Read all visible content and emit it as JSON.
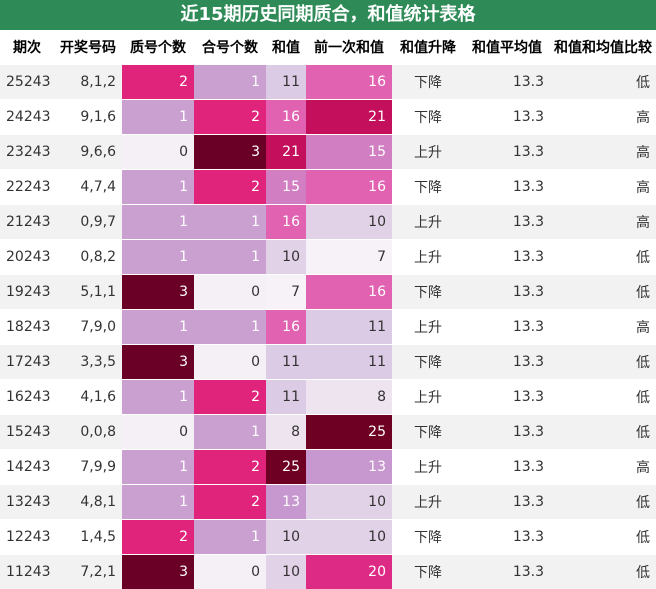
{
  "title": "近15期历史同期质合，和值统计表格",
  "headers": [
    "期次",
    "开奖号码",
    "质号个数",
    "合号个数",
    "和值",
    "前一次和值",
    "和值升降",
    "和值平均值",
    "和值和均值比较"
  ],
  "rows": [
    {
      "qici": "25243",
      "haoma": "8,1,2",
      "zhi": 2,
      "he": 1,
      "hezhi": 11,
      "qian": 16,
      "shengjiang": "下降",
      "avg": "13.3",
      "bijiao": "低"
    },
    {
      "qici": "24243",
      "haoma": "9,1,6",
      "zhi": 1,
      "he": 2,
      "hezhi": 16,
      "qian": 21,
      "shengjiang": "下降",
      "avg": "13.3",
      "bijiao": "高"
    },
    {
      "qici": "23243",
      "haoma": "9,6,6",
      "zhi": 0,
      "he": 3,
      "hezhi": 21,
      "qian": 15,
      "shengjiang": "上升",
      "avg": "13.3",
      "bijiao": "高"
    },
    {
      "qici": "22243",
      "haoma": "4,7,4",
      "zhi": 1,
      "he": 2,
      "hezhi": 15,
      "qian": 16,
      "shengjiang": "下降",
      "avg": "13.3",
      "bijiao": "高"
    },
    {
      "qici": "21243",
      "haoma": "0,9,7",
      "zhi": 1,
      "he": 1,
      "hezhi": 16,
      "qian": 10,
      "shengjiang": "上升",
      "avg": "13.3",
      "bijiao": "高"
    },
    {
      "qici": "20243",
      "haoma": "0,8,2",
      "zhi": 1,
      "he": 1,
      "hezhi": 10,
      "qian": 7,
      "shengjiang": "上升",
      "avg": "13.3",
      "bijiao": "低"
    },
    {
      "qici": "19243",
      "haoma": "5,1,1",
      "zhi": 3,
      "he": 0,
      "hezhi": 7,
      "qian": 16,
      "shengjiang": "下降",
      "avg": "13.3",
      "bijiao": "低"
    },
    {
      "qici": "18243",
      "haoma": "7,9,0",
      "zhi": 1,
      "he": 1,
      "hezhi": 16,
      "qian": 11,
      "shengjiang": "上升",
      "avg": "13.3",
      "bijiao": "高"
    },
    {
      "qici": "17243",
      "haoma": "3,3,5",
      "zhi": 3,
      "he": 0,
      "hezhi": 11,
      "qian": 11,
      "shengjiang": "下降",
      "avg": "13.3",
      "bijiao": "低"
    },
    {
      "qici": "16243",
      "haoma": "4,1,6",
      "zhi": 1,
      "he": 2,
      "hezhi": 11,
      "qian": 8,
      "shengjiang": "上升",
      "avg": "13.3",
      "bijiao": "低"
    },
    {
      "qici": "15243",
      "haoma": "0,0,8",
      "zhi": 0,
      "he": 1,
      "hezhi": 8,
      "qian": 25,
      "shengjiang": "下降",
      "avg": "13.3",
      "bijiao": "低"
    },
    {
      "qici": "14243",
      "haoma": "7,9,9",
      "zhi": 1,
      "he": 2,
      "hezhi": 25,
      "qian": 13,
      "shengjiang": "上升",
      "avg": "13.3",
      "bijiao": "高"
    },
    {
      "qici": "13243",
      "haoma": "4,8,1",
      "zhi": 1,
      "he": 2,
      "hezhi": 13,
      "qian": 10,
      "shengjiang": "上升",
      "avg": "13.3",
      "bijiao": "低"
    },
    {
      "qici": "12243",
      "haoma": "1,4,5",
      "zhi": 2,
      "he": 1,
      "hezhi": 10,
      "qian": 10,
      "shengjiang": "下降",
      "avg": "13.3",
      "bijiao": "低"
    },
    {
      "qici": "11243",
      "haoma": "7,2,1",
      "zhi": 3,
      "he": 0,
      "hezhi": 10,
      "qian": 20,
      "shengjiang": "下降",
      "avg": "13.3",
      "bijiao": "低"
    }
  ],
  "colors": {
    "title_bg": "#2e8b57",
    "heat_count": {
      "0": "#f5f0f5",
      "1": "#c9a0d0",
      "2": "#e0247c",
      "3": "#6b0026"
    },
    "heat_sum": {
      "7": "#f7f2f8",
      "8": "#eee4f0",
      "10": "#e2d2e8",
      "11": "#dccbe4",
      "13": "#c797cf",
      "15": "#d27ec2",
      "16": "#e062b0",
      "20": "#dd2a84",
      "21": "#c4105c",
      "25": "#6e0024"
    }
  }
}
